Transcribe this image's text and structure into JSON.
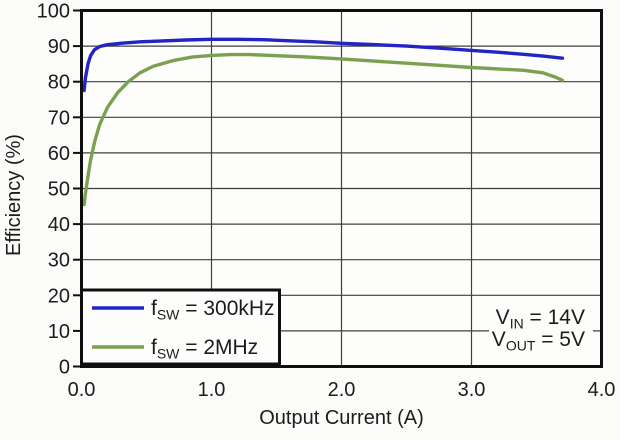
{
  "chart_data": {
    "type": "line",
    "title": "",
    "xlabel": "Output Current (A)",
    "ylabel": "Efficiency (%)",
    "xlim": [
      0.0,
      4.0
    ],
    "ylim": [
      0,
      100
    ],
    "x_ticks": [
      {
        "v": 0,
        "label": "0.0"
      },
      {
        "v": 1,
        "label": "1.0"
      },
      {
        "v": 2,
        "label": "2.0"
      },
      {
        "v": 3,
        "label": "3.0"
      },
      {
        "v": 4,
        "label": "4.0"
      }
    ],
    "y_ticks": [
      {
        "v": 0,
        "label": "0"
      },
      {
        "v": 10,
        "label": "10"
      },
      {
        "v": 20,
        "label": "20"
      },
      {
        "v": 30,
        "label": "30"
      },
      {
        "v": 40,
        "label": "40"
      },
      {
        "v": 50,
        "label": "50"
      },
      {
        "v": 60,
        "label": "60"
      },
      {
        "v": 70,
        "label": "70"
      },
      {
        "v": 80,
        "label": "80"
      },
      {
        "v": 90,
        "label": "90"
      },
      {
        "v": 100,
        "label": "100"
      }
    ],
    "grid": true,
    "legend_position": "bottom-left",
    "series": [
      {
        "id": "fsw-300khz",
        "label": {
          "pre": "f",
          "sub": "SW",
          "post": " = 300kHz"
        },
        "color": "#2424c4",
        "x": [
          0.02,
          0.03,
          0.05,
          0.07,
          0.1,
          0.14,
          0.2,
          0.3,
          0.45,
          0.6,
          0.8,
          1.0,
          1.2,
          1.4,
          1.6,
          1.8,
          2.0,
          2.2,
          2.5,
          2.8,
          3.0,
          3.2,
          3.4,
          3.55,
          3.7
        ],
        "y": [
          77.5,
          81.0,
          85.0,
          87.3,
          89.0,
          89.9,
          90.4,
          90.8,
          91.2,
          91.4,
          91.7,
          91.9,
          91.9,
          91.8,
          91.5,
          91.2,
          90.8,
          90.5,
          90.0,
          89.3,
          88.8,
          88.3,
          87.7,
          87.2,
          86.6
        ]
      },
      {
        "id": "fsw-2mhz",
        "label": {
          "pre": "f",
          "sub": "SW",
          "post": " = 2MHz"
        },
        "color": "#7ba150",
        "x": [
          0.02,
          0.03,
          0.05,
          0.07,
          0.1,
          0.14,
          0.2,
          0.28,
          0.36,
          0.45,
          0.55,
          0.7,
          0.85,
          1.0,
          1.15,
          1.3,
          1.5,
          1.75,
          2.0,
          2.25,
          2.5,
          2.75,
          3.0,
          3.2,
          3.4,
          3.55,
          3.65,
          3.7
        ],
        "y": [
          45.5,
          48.5,
          53.5,
          58.0,
          63.0,
          68.0,
          72.8,
          77.0,
          80.0,
          82.5,
          84.3,
          85.9,
          86.9,
          87.4,
          87.6,
          87.6,
          87.3,
          86.9,
          86.4,
          85.8,
          85.2,
          84.6,
          84.0,
          83.6,
          83.2,
          82.5,
          81.2,
          80.4
        ]
      }
    ],
    "annotation": {
      "position": "bottom-right",
      "lines": [
        {
          "pre": "V",
          "sub": "IN",
          "post": " = 14V"
        },
        {
          "pre": "V",
          "sub": "OUT",
          "post": " = 5V"
        }
      ]
    },
    "colors": {
      "grid": "#3f3f3f",
      "border": "#0f0f0f",
      "text": "#1c1c1c",
      "plot_background": "#fdfdfb",
      "page_background": "#fbfbf9"
    }
  }
}
